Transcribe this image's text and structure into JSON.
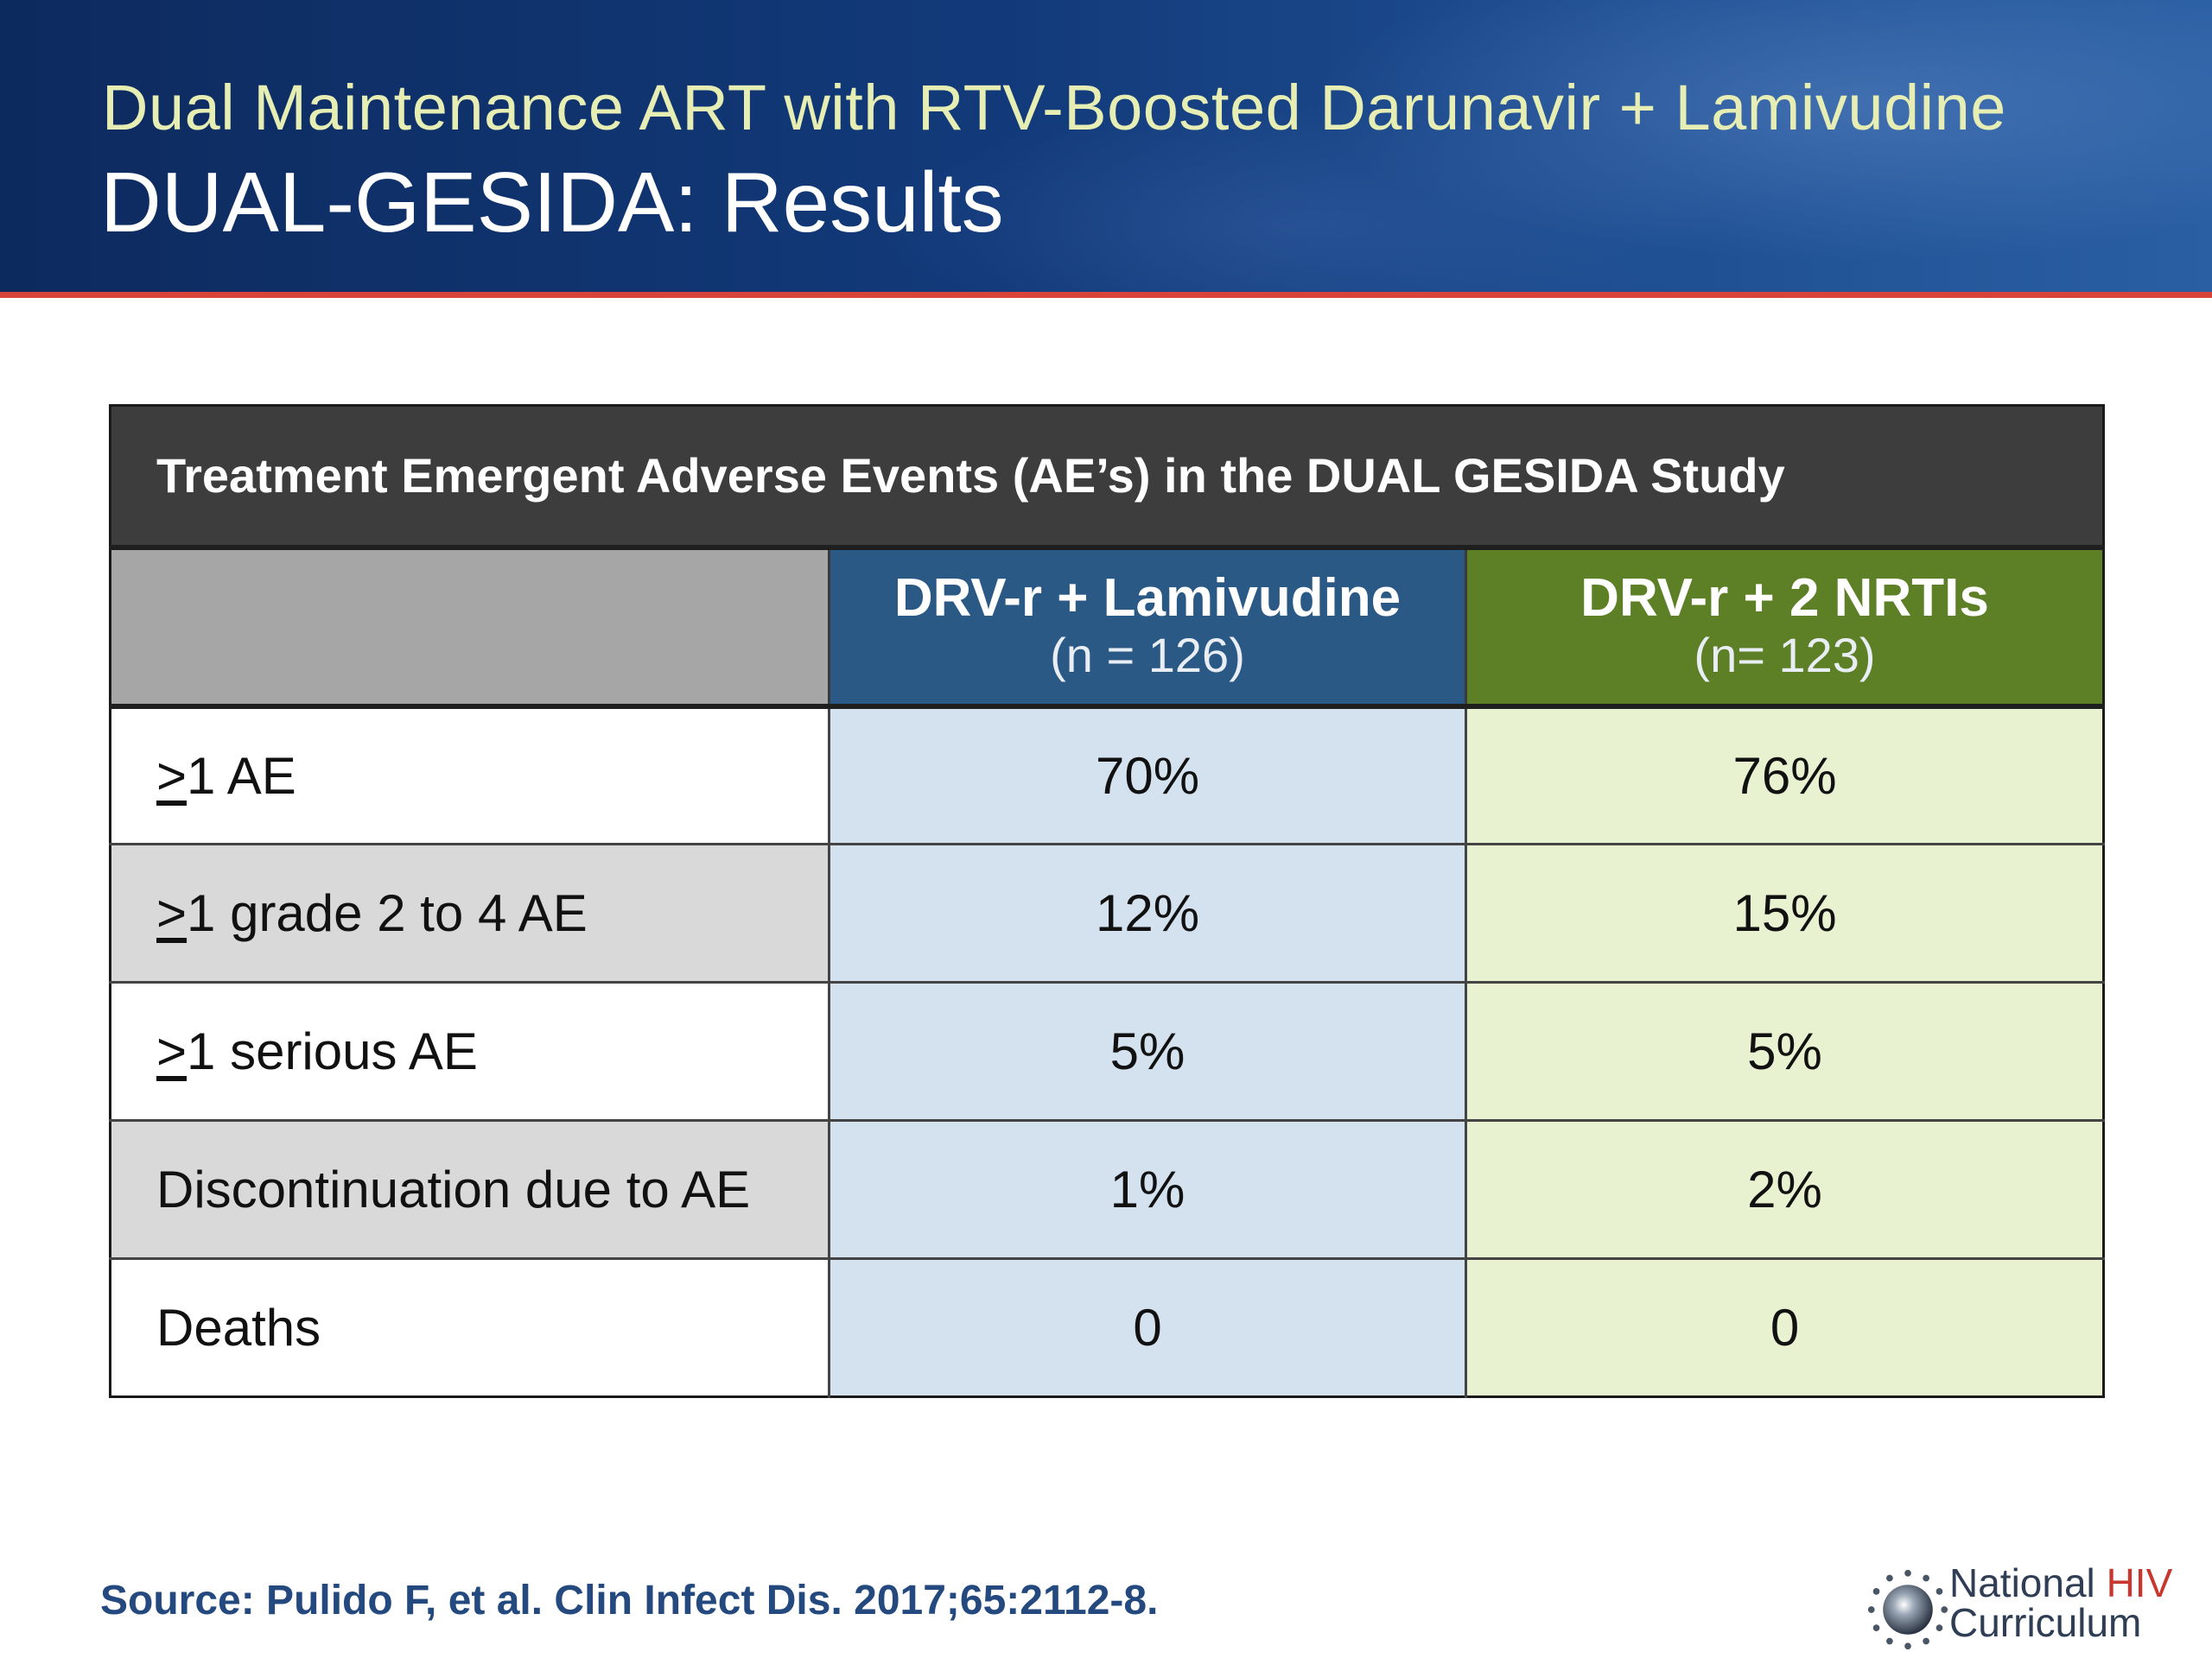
{
  "header": {
    "subtitle": "Dual Maintenance ART with RTV-Boosted Darunavir + Lamivudine",
    "title": "DUAL-GESIDA: Results"
  },
  "table": {
    "caption": "Treatment Emergent Adverse Events (AE’s) in the DUAL GESIDA Study",
    "columns": [
      {
        "name": "DRV-r + Lamivudine",
        "n": "(n = 126)"
      },
      {
        "name": "DRV-r + 2 NRTIs",
        "n": "(n= 123)"
      }
    ],
    "rows": [
      {
        "symbol": ">",
        "label": "1 AE",
        "a": "70%",
        "b": "76%"
      },
      {
        "symbol": ">",
        "label": "1 grade 2 to 4 AE",
        "a": "12%",
        "b": "15%"
      },
      {
        "symbol": ">",
        "label": "1 serious AE",
        "a": "5%",
        "b": "5%"
      },
      {
        "label": "Discontinuation due to AE",
        "a": "1%",
        "b": "2%"
      },
      {
        "label": "Deaths",
        "a": "0",
        "b": "0"
      }
    ]
  },
  "footer": {
    "source": "Source: Pulido F, et al. Clin Infect Dis. 2017;65:2112-8.",
    "logo_line1": "National",
    "logo_line1_accent": "HIV",
    "logo_line2": "Curriculum"
  },
  "colors": {
    "banner": "#123a7a",
    "accent_stripe": "#d8443a",
    "subtitle": "#e6eeb4",
    "column_a_header": "#2b5985",
    "column_b_header": "#5d7f26",
    "column_a_cells": "#d4e1ee",
    "column_b_cells": "#e8f1d0",
    "caption_bar": "#3d3d3d",
    "source_text": "#24497f"
  },
  "icons": [
    "national-hiv-curriculum-logo-icon"
  ]
}
